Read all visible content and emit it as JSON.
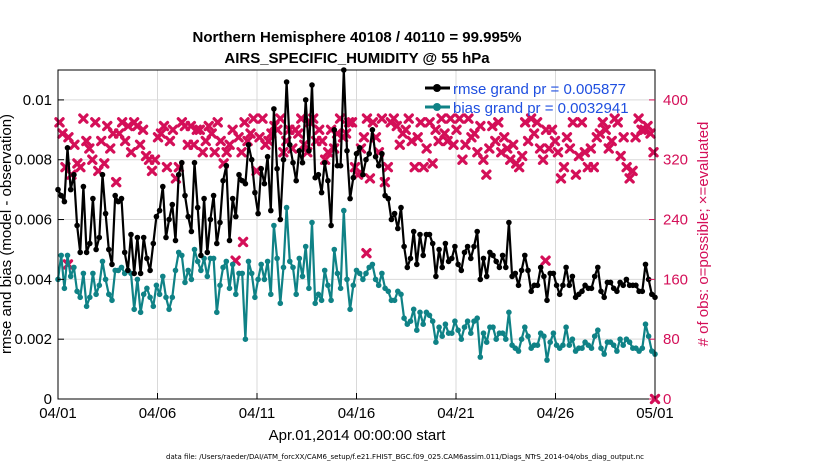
{
  "chart_data": {
    "type": "line",
    "title_line1": "Northern Hemisphere 40108 / 40110 = 99.995%",
    "title_line2": "AIRS_SPECIFIC_HUMIDITY @ 55 hPa",
    "xlabel": "Apr.01,2014 00:00:00 start",
    "ylabel_left": "rmse and bias (model - observation)",
    "ylabel_right": "# of obs: o=possible; ×=evaluated",
    "x_range_days": [
      0,
      30
    ],
    "x_tick_labels": [
      "04/01",
      "04/06",
      "04/11",
      "04/16",
      "04/21",
      "04/26",
      "05/01"
    ],
    "x_tick_days": [
      0,
      5,
      10,
      15,
      20,
      25,
      30
    ],
    "ylim_left": [
      0,
      0.011
    ],
    "y_ticks_left": [
      0,
      0.002,
      0.004,
      0.006,
      0.008,
      0.01
    ],
    "y_tick_labels_left": [
      "0",
      "0.002",
      "0.004",
      "0.006",
      "0.008",
      "0.01"
    ],
    "ylim_right": [
      0,
      440
    ],
    "y_ticks_right": [
      0,
      80,
      160,
      240,
      320,
      400
    ],
    "y_tick_labels_right": [
      "0",
      "80",
      "160",
      "240",
      "320",
      "400"
    ],
    "colors": {
      "rmse": "#000000",
      "bias": "#0f8286",
      "obs": "#d40f58",
      "legend_text": "#1f4fe0"
    },
    "series": [
      {
        "name": "rmse",
        "legend": "rmse grand pr = 0.005877",
        "values": [
          0.007,
          0.0068,
          0.0066,
          0.0084,
          0.007,
          0.0075,
          0.0058,
          0.0049,
          0.0071,
          0.0049,
          0.0052,
          0.0067,
          0.005,
          0.0054,
          0.0075,
          0.0062,
          0.005,
          0.0045,
          0.0068,
          0.0066,
          0.0067,
          0.0049,
          0.0043,
          0.0055,
          0.0042,
          0.0054,
          0.0042,
          0.0054,
          0.0047,
          0.0043,
          0.0052,
          0.0061,
          0.0063,
          0.0071,
          0.0054,
          0.006,
          0.0065,
          0.0053,
          0.0075,
          0.0079,
          0.0068,
          0.0061,
          0.0056,
          0.0079,
          0.0064,
          0.0048,
          0.0067,
          0.0049,
          0.006,
          0.0068,
          0.0052,
          0.0059,
          0.0073,
          0.0078,
          0.0053,
          0.0067,
          0.0061,
          0.0075,
          0.0073,
          0.0072,
          0.0085,
          0.008,
          0.0069,
          0.0062,
          0.0077,
          0.0072,
          0.0081,
          0.0063,
          0.0097,
          0.0077,
          0.006,
          0.008,
          0.0106,
          0.0085,
          0.0079,
          0.0073,
          0.0083,
          0.0079,
          0.01,
          0.0083,
          0.0105,
          0.0074,
          0.0075,
          0.0069,
          0.0079,
          0.0073,
          0.0058,
          0.009,
          0.0078,
          0.0078,
          0.011,
          0.0083,
          0.0067,
          0.0074,
          0.0082,
          0.0084,
          0.0075,
          0.008,
          0.0082,
          0.009,
          0.0081,
          0.0078,
          0.0082,
          0.0068,
          0.0067,
          0.006,
          0.0062,
          0.0057,
          0.0064,
          0.0051,
          0.0044,
          0.0047,
          0.0056,
          0.0045,
          0.0055,
          0.0048,
          0.0055,
          0.0055,
          0.0052,
          0.0041,
          0.005,
          0.0044,
          0.0052,
          0.0046,
          0.0047,
          0.0051,
          0.0045,
          0.0043,
          0.0049,
          0.0051,
          0.0047,
          0.0051,
          0.0056,
          0.004,
          0.0047,
          0.0041,
          0.0049,
          0.0048,
          0.0046,
          0.0044,
          0.0048,
          0.0044,
          0.0059,
          0.0041,
          0.0042,
          0.0038,
          0.0043,
          0.0048,
          0.0043,
          0.0036,
          0.0038,
          0.0038,
          0.0044,
          0.0041,
          0.0033,
          0.0042,
          0.0042,
          0.0038,
          0.0035,
          0.0038,
          0.0044,
          0.0038,
          0.0041,
          0.0034,
          0.0035,
          0.0036,
          0.0038,
          0.0037,
          0.0037,
          0.0041,
          0.0044,
          0.0036,
          0.0034,
          0.0039,
          0.0039,
          0.0037,
          0.0036,
          0.0039,
          0.0038,
          0.004,
          0.0038,
          0.0038,
          0.0038,
          0.0036,
          0.0036,
          0.0045,
          0.004,
          0.0035,
          0.0034
        ]
      },
      {
        "name": "bias",
        "legend": "bias grand pr = 0.0032941",
        "values": [
          0.004,
          0.0048,
          0.0037,
          0.0048,
          0.0041,
          0.0044,
          0.0036,
          0.0034,
          0.0042,
          0.0031,
          0.0034,
          0.0042,
          0.0035,
          0.0038,
          0.0046,
          0.004,
          0.0035,
          0.0033,
          0.0043,
          0.0043,
          0.0044,
          0.0042,
          0.0043,
          0.0042,
          0.003,
          0.004,
          0.0029,
          0.0035,
          0.0037,
          0.0034,
          0.0031,
          0.0038,
          0.0035,
          0.0041,
          0.0034,
          0.003,
          0.0034,
          0.0043,
          0.0049,
          0.0048,
          0.0039,
          0.0043,
          0.004,
          0.005,
          0.0046,
          0.0043,
          0.0047,
          0.0041,
          0.0047,
          0.0047,
          0.0029,
          0.0038,
          0.0044,
          0.0046,
          0.0037,
          0.0045,
          0.0035,
          0.0042,
          0.0042,
          0.002,
          0.0046,
          0.0042,
          0.0034,
          0.004,
          0.0045,
          0.004,
          0.0046,
          0.0035,
          0.0058,
          0.0047,
          0.0032,
          0.0044,
          0.0064,
          0.0046,
          0.0044,
          0.0035,
          0.0047,
          0.0041,
          0.0051,
          0.0037,
          0.0059,
          0.0032,
          0.0035,
          0.0033,
          0.0043,
          0.0038,
          0.0033,
          0.005,
          0.0042,
          0.0037,
          0.0063,
          0.004,
          0.003,
          0.0038,
          0.0043,
          0.0042,
          0.004,
          0.0042,
          0.0044,
          0.0045,
          0.004,
          0.0038,
          0.0042,
          0.0037,
          0.0036,
          0.0033,
          0.0033,
          0.0036,
          0.0035,
          0.0027,
          0.0025,
          0.0026,
          0.003,
          0.0023,
          0.0029,
          0.0025,
          0.0029,
          0.0028,
          0.0026,
          0.0019,
          0.0024,
          0.0021,
          0.0025,
          0.0022,
          0.0022,
          0.0026,
          0.0023,
          0.002,
          0.0024,
          0.0026,
          0.0022,
          0.0026,
          0.0027,
          0.0014,
          0.0022,
          0.0019,
          0.0024,
          0.0024,
          0.002,
          0.0022,
          0.0022,
          0.002,
          0.0029,
          0.0018,
          0.0017,
          0.0016,
          0.002,
          0.0024,
          0.0021,
          0.0017,
          0.0018,
          0.0018,
          0.0022,
          0.0021,
          0.0013,
          0.0019,
          0.0022,
          0.0018,
          0.0017,
          0.0018,
          0.0024,
          0.0018,
          0.002,
          0.0016,
          0.0017,
          0.0017,
          0.0019,
          0.0018,
          0.0017,
          0.0021,
          0.0023,
          0.0017,
          0.0015,
          0.0019,
          0.0019,
          0.0018,
          0.0016,
          0.002,
          0.0018,
          0.002,
          0.0019,
          0.0017,
          0.0017,
          0.0016,
          0.0017,
          0.0025,
          0.0021,
          0.0016,
          0.0015
        ]
      },
      {
        "name": "obs_evaluated",
        "marker": "x",
        "values": [
          370,
          355,
          310,
          350,
          300,
          340,
          315,
          310,
          375,
          345,
          335,
          320,
          370,
          305,
          345,
          315,
          365,
          335,
          355,
          290,
          355,
          370,
          345,
          365,
          330,
          370,
          365,
          340,
          360,
          325,
          320,
          305,
          320,
          350,
          355,
          365,
          310,
          345,
          360,
          295,
          310,
          370,
          365,
          340,
          365,
          340,
          360,
          360,
          330,
          345,
          365,
          355,
          330,
          370,
          345,
          315,
          330,
          340,
          360,
          185,
          350,
          330,
          370,
          345,
          355,
          375,
          305,
          350,
          375,
          340,
          345,
          355,
          365,
          360,
          375,
          330,
          345,
          360,
          335,
          360,
          355,
          375,
          340,
          330,
          370,
          375,
          345,
          360,
          345,
          320,
          330,
          360,
          335,
          355,
          375,
          350,
          355,
          370,
          370,
          310,
          300,
          335,
          350,
          375,
          295,
          370,
          350,
          330,
          375,
          290,
          310,
          370,
          375,
          365,
          340,
          355,
          360,
          375,
          345,
          310,
          350,
          370,
          310,
          335,
          370,
          315,
          360,
          345,
          375,
          355,
          345,
          375,
          340,
          360,
          375,
          320,
          340,
          375,
          350,
          355,
          330,
          365,
          320,
          300,
          335,
          365,
          345,
          370,
          330,
          350,
          335,
          320,
          340,
          315,
          310,
          325,
          370,
          345,
          375,
          355,
          370,
          335,
          320,
          360,
          335,
          360,
          345,
          330,
          295,
          310,
          350,
          335,
          370,
          300,
          325,
          370,
          330,
          310,
          335,
          310,
          350,
          355,
          370,
          360,
          335,
          345,
          375,
          370,
          325,
          350,
          310,
          295,
          305,
          350,
          375,
          360,
          360,
          365,
          355,
          330
        ]
      }
    ],
    "extra_evaluated": [
      {
        "day": 0.5,
        "value": 180
      },
      {
        "day": 9.3,
        "value": 210
      },
      {
        "day": 15.5,
        "value": 195
      },
      {
        "day": 24.5,
        "value": 185
      }
    ]
  },
  "footer": "data file: /Users/raeder/DAI/ATM_forcXX/CAM6_setup/f.e21.FHIST_BGC.f09_025.CAM6assim.011/Diags_NTrS_2014-04/obs_diag_output.nc"
}
